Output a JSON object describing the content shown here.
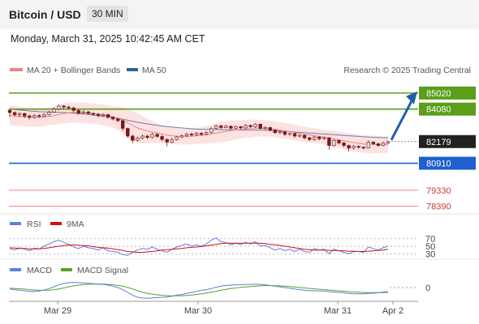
{
  "header": {
    "title": "Bitcoin / USD",
    "timeframe": "30 MIN"
  },
  "datetime": "Monday, March 31, 2025 10:42:45 AM CET",
  "legend": {
    "bollinger": "MA 20 + Bollinger Bands",
    "ma50": "MA 50",
    "research": "Research © 2025 Trading Central"
  },
  "colors": {
    "up_candle": "#cfe6e0",
    "down_candle": "#7a1a1a",
    "ma20": "#f08080",
    "bollinger_fill": "#fde2e2",
    "ma50": "#6a7fb0",
    "resistance": "#5a9e1a",
    "support": "#1f5fcf",
    "target": "#f08080",
    "arrow": "#1f5fa8",
    "rsi": "#5a7fdf",
    "rsi_ma": "#d01010",
    "macd": "#5a7fdf",
    "macd_signal": "#5aa028"
  },
  "chart_data": {
    "type": "candlestick",
    "y_range": [
      77900,
      86200
    ],
    "levels": [
      {
        "value": 85020,
        "label": "85020",
        "kind": "resistance"
      },
      {
        "value": 84080,
        "label": "84080",
        "kind": "resistance"
      },
      {
        "value": 82179,
        "label": "82179",
        "kind": "last"
      },
      {
        "value": 80910,
        "label": "80910",
        "kind": "support"
      },
      {
        "value": 79330,
        "label": "79330",
        "kind": "target"
      },
      {
        "value": 78390,
        "label": "78390",
        "kind": "target"
      }
    ],
    "x_labels": [
      "Mar 29",
      "Mar 30",
      "Mar 31",
      "Apr 2"
    ],
    "candles": [
      [
        84020,
        83880,
        83990,
        83600
      ],
      [
        83880,
        83750,
        83950,
        83640
      ],
      [
        83750,
        83820,
        83900,
        83600
      ],
      [
        83820,
        83680,
        83880,
        83560
      ],
      [
        83680,
        83600,
        83760,
        83460
      ],
      [
        83600,
        83700,
        83790,
        83520
      ],
      [
        83700,
        83660,
        83780,
        83560
      ],
      [
        83660,
        83760,
        83840,
        83600
      ],
      [
        83760,
        83900,
        83980,
        83700
      ],
      [
        83900,
        84080,
        84180,
        83840
      ],
      [
        84080,
        84260,
        84340,
        84000
      ],
      [
        84260,
        84200,
        84320,
        84080
      ],
      [
        84200,
        84150,
        84280,
        84060
      ],
      [
        84150,
        84000,
        84220,
        83900
      ],
      [
        84000,
        83850,
        84080,
        83760
      ],
      [
        83850,
        83920,
        84010,
        83780
      ],
      [
        83920,
        83830,
        83980,
        83740
      ],
      [
        83830,
        83780,
        83900,
        83700
      ],
      [
        83780,
        83700,
        83850,
        83600
      ],
      [
        83700,
        83760,
        83840,
        83620
      ],
      [
        83760,
        83600,
        83800,
        83520
      ],
      [
        83600,
        83500,
        83680,
        83420
      ],
      [
        83500,
        83400,
        83580,
        83320
      ],
      [
        83400,
        82950,
        83450,
        82800
      ],
      [
        82950,
        82500,
        83000,
        82400
      ],
      [
        82500,
        82250,
        82600,
        82080
      ],
      [
        82250,
        82380,
        82480,
        82160
      ],
      [
        82380,
        82500,
        82600,
        82300
      ],
      [
        82500,
        82420,
        82580,
        82330
      ],
      [
        82420,
        82600,
        82690,
        82350
      ],
      [
        82600,
        82480,
        82680,
        82400
      ],
      [
        82480,
        82300,
        82560,
        82200
      ],
      [
        82300,
        82150,
        82380,
        81900
      ],
      [
        82150,
        82300,
        82400,
        82080
      ],
      [
        82300,
        82450,
        82520,
        82240
      ],
      [
        82450,
        82520,
        82600,
        82380
      ],
      [
        82520,
        82620,
        82700,
        82440
      ],
      [
        82620,
        82560,
        82700,
        82480
      ],
      [
        82560,
        82660,
        82740,
        82500
      ],
      [
        82660,
        82600,
        82730,
        82520
      ],
      [
        82600,
        82700,
        82780,
        82540
      ],
      [
        82700,
        82950,
        83020,
        82660
      ],
      [
        82950,
        83100,
        83180,
        82880
      ],
      [
        83100,
        83000,
        83160,
        82900
      ],
      [
        83000,
        83080,
        83150,
        82960
      ],
      [
        83080,
        82960,
        83120,
        82880
      ],
      [
        82960,
        83050,
        83120,
        82900
      ],
      [
        83050,
        82980,
        83100,
        82900
      ],
      [
        82980,
        83120,
        83200,
        82920
      ],
      [
        83120,
        83050,
        83180,
        82980
      ],
      [
        83050,
        83200,
        83260,
        82980
      ],
      [
        83200,
        82950,
        83240,
        82880
      ],
      [
        82950,
        83000,
        83080,
        82860
      ],
      [
        83000,
        82850,
        83060,
        82780
      ],
      [
        82850,
        82700,
        82900,
        82620
      ],
      [
        82700,
        82750,
        82820,
        82620
      ],
      [
        82750,
        82600,
        82800,
        82500
      ],
      [
        82600,
        82650,
        82720,
        82520
      ],
      [
        82650,
        82500,
        82700,
        82400
      ],
      [
        82500,
        82550,
        82620,
        82420
      ],
      [
        82550,
        82400,
        82600,
        82300
      ],
      [
        82400,
        82300,
        82460,
        82200
      ],
      [
        82300,
        82450,
        82520,
        82240
      ],
      [
        82450,
        82350,
        82500,
        82260
      ],
      [
        82350,
        82400,
        82480,
        82280
      ],
      [
        82400,
        81950,
        82440,
        81700
      ],
      [
        81950,
        82250,
        82320,
        81880
      ],
      [
        82250,
        82100,
        82300,
        82000
      ],
      [
        82100,
        81950,
        82150,
        81850
      ],
      [
        81950,
        81800,
        82000,
        81600
      ],
      [
        81800,
        81900,
        81980,
        81700
      ],
      [
        81900,
        81850,
        81960,
        81760
      ],
      [
        81850,
        81800,
        81900,
        81720
      ],
      [
        81800,
        82150,
        82260,
        81760
      ],
      [
        82150,
        82050,
        82200,
        81980
      ],
      [
        82050,
        81950,
        82100,
        81880
      ],
      [
        81950,
        82100,
        82180,
        81900
      ],
      [
        82100,
        82179,
        82240,
        82020
      ]
    ],
    "ma20": [
      83720,
      83680,
      83650,
      83620,
      83600,
      83590,
      83600,
      83620,
      83660,
      83700,
      83760,
      83820,
      83870,
      83890,
      83880,
      83860,
      83840,
      83820,
      83780,
      83740,
      83690,
      83620,
      83540,
      83420,
      83280,
      83120,
      82980,
      82880,
      82800,
      82740,
      82680,
      82620,
      82560,
      82520,
      82490,
      82480,
      82480,
      82490,
      82510,
      82540,
      82570,
      82620,
      82680,
      82730,
      82780,
      82820,
      82860,
      82890,
      82920,
      82940,
      82960,
      82960,
      82950,
      82930,
      82890,
      82850,
      82800,
      82760,
      82710,
      82660,
      82610,
      82560,
      82520,
      82480,
      82440,
      82380,
      82330,
      82280,
      82230,
      82170,
      82120,
      82080,
      82040,
      82020,
      82010,
      82000,
      82000,
      82010
    ],
    "bb_upper": [
      84300,
      84260,
      84220,
      84180,
      84150,
      84140,
      84140,
      84150,
      84180,
      84240,
      84330,
      84420,
      84470,
      84480,
      84470,
      84450,
      84430,
      84410,
      84380,
      84350,
      84300,
      84260,
      84230,
      84180,
      84120,
      84000,
      83850,
      83680,
      83520,
      83380,
      83250,
      83150,
      83080,
      83010,
      82970,
      82950,
      82950,
      82960,
      82990,
      83030,
      83080,
      83150,
      83250,
      83330,
      83380,
      83410,
      83430,
      83440,
      83450,
      83460,
      83460,
      83450,
      83430,
      83400,
      83360,
      83320,
      83270,
      83220,
      83170,
      83110,
      83060,
      83000,
      82960,
      82900,
      82860,
      82840,
      82800,
      82760,
      82720,
      82680,
      82640,
      82590,
      82560,
      82540,
      82520,
      82500,
      82490,
      82480
    ],
    "bb_lower": [
      83140,
      83100,
      83080,
      83060,
      83050,
      83040,
      83060,
      83090,
      83140,
      83160,
      83190,
      83220,
      83270,
      83300,
      83290,
      83270,
      83250,
      83230,
      83180,
      83130,
      83080,
      82980,
      82850,
      82660,
      82440,
      82240,
      82110,
      82080,
      82080,
      82100,
      82110,
      82090,
      82040,
      82030,
      82010,
      82010,
      82010,
      82020,
      82030,
      82050,
      82060,
      82090,
      82110,
      82130,
      82180,
      82230,
      82290,
      82340,
      82390,
      82420,
      82460,
      82470,
      82470,
      82460,
      82420,
      82380,
      82330,
      82300,
      82250,
      82210,
      82160,
      82120,
      82080,
      82060,
      82020,
      81920,
      81860,
      81800,
      81740,
      81660,
      81600,
      81570,
      81520,
      81500,
      81500,
      81500,
      81510,
      81540
    ],
    "ma50": [
      84100,
      84060,
      84030,
      84000,
      83970,
      83950,
      83930,
      83920,
      83910,
      83900,
      83890,
      83880,
      83860,
      83840,
      83810,
      83790,
      83760,
      83730,
      83700,
      83660,
      83620,
      83580,
      83540,
      83490,
      83430,
      83370,
      83310,
      83260,
      83210,
      83170,
      83130,
      83090,
      83060,
      83030,
      83000,
      82980,
      82950,
      82930,
      82910,
      82900,
      82890,
      82880,
      82880,
      82880,
      82870,
      82870,
      82870,
      82860,
      82860,
      82860,
      82850,
      82850,
      82840,
      82830,
      82820,
      82800,
      82780,
      82760,
      82740,
      82720,
      82700,
      82680,
      82660,
      82640,
      82620,
      82600,
      82580,
      82560,
      82540,
      82520,
      82500,
      82480,
      82460,
      82440,
      82430,
      82420,
      82410,
      82400
    ],
    "rsi": {
      "ticks": [
        "70",
        "50",
        "30"
      ],
      "legend": [
        "RSI",
        "9MA"
      ],
      "rsi": [
        44,
        40,
        46,
        42,
        38,
        45,
        43,
        50,
        56,
        62,
        66,
        60,
        55,
        48,
        44,
        50,
        46,
        44,
        40,
        46,
        38,
        36,
        34,
        28,
        26,
        34,
        40,
        44,
        42,
        48,
        42,
        38,
        34,
        42,
        48,
        52,
        56,
        50,
        54,
        50,
        56,
        66,
        72,
        62,
        60,
        54,
        58,
        55,
        60,
        56,
        62,
        50,
        52,
        46,
        40,
        44,
        38,
        42,
        36,
        42,
        36,
        34,
        44,
        40,
        42,
        30,
        42,
        38,
        34,
        30,
        36,
        36,
        34,
        48,
        44,
        40,
        46,
        50
      ],
      "ma": [
        46,
        45,
        44,
        44,
        43,
        43,
        43,
        44,
        46,
        48,
        50,
        52,
        53,
        54,
        53,
        52,
        51,
        49,
        47,
        46,
        45,
        43,
        41,
        39,
        36,
        35,
        34,
        34,
        35,
        36,
        38,
        40,
        41,
        42,
        43,
        44,
        46,
        47,
        48,
        49,
        51,
        53,
        55,
        57,
        58,
        58,
        58,
        58,
        58,
        58,
        58,
        58,
        57,
        55,
        54,
        52,
        50,
        48,
        46,
        44,
        42,
        41,
        40,
        40,
        40,
        39,
        39,
        38,
        38,
        37,
        37,
        36,
        36,
        37,
        38,
        39,
        40,
        42
      ]
    },
    "macd": {
      "ticks": [
        "0"
      ],
      "legend": [
        "MACD",
        "MACD Signal"
      ],
      "macd": [
        -40,
        -60,
        -80,
        -90,
        -110,
        -110,
        -100,
        -70,
        -30,
        20,
        80,
        120,
        140,
        150,
        140,
        130,
        120,
        110,
        100,
        90,
        70,
        40,
        0,
        -60,
        -140,
        -220,
        -280,
        -300,
        -310,
        -300,
        -290,
        -280,
        -270,
        -250,
        -220,
        -200,
        -170,
        -140,
        -110,
        -80,
        -60,
        -30,
        10,
        40,
        60,
        70,
        80,
        80,
        90,
        90,
        100,
        90,
        80,
        60,
        40,
        20,
        0,
        -20,
        -40,
        -60,
        -80,
        -90,
        -90,
        -100,
        -100,
        -120,
        -130,
        -140,
        -150,
        -170,
        -180,
        -180,
        -180,
        -170,
        -160,
        -150,
        -130,
        -120
      ],
      "signal": [
        -20,
        -25,
        -35,
        -45,
        -60,
        -70,
        -78,
        -80,
        -75,
        -60,
        -40,
        -10,
        20,
        50,
        70,
        85,
        95,
        100,
        100,
        98,
        92,
        80,
        64,
        40,
        5,
        -40,
        -90,
        -130,
        -165,
        -190,
        -210,
        -225,
        -234,
        -240,
        -240,
        -236,
        -228,
        -216,
        -200,
        -182,
        -160,
        -135,
        -108,
        -78,
        -52,
        -30,
        -12,
        2,
        18,
        30,
        42,
        50,
        56,
        57,
        54,
        48,
        40,
        28,
        16,
        2,
        -12,
        -26,
        -38,
        -50,
        -60,
        -72,
        -84,
        -96,
        -106,
        -118,
        -128,
        -136,
        -142,
        -146,
        -148,
        -148,
        -146,
        -140
      ]
    }
  }
}
